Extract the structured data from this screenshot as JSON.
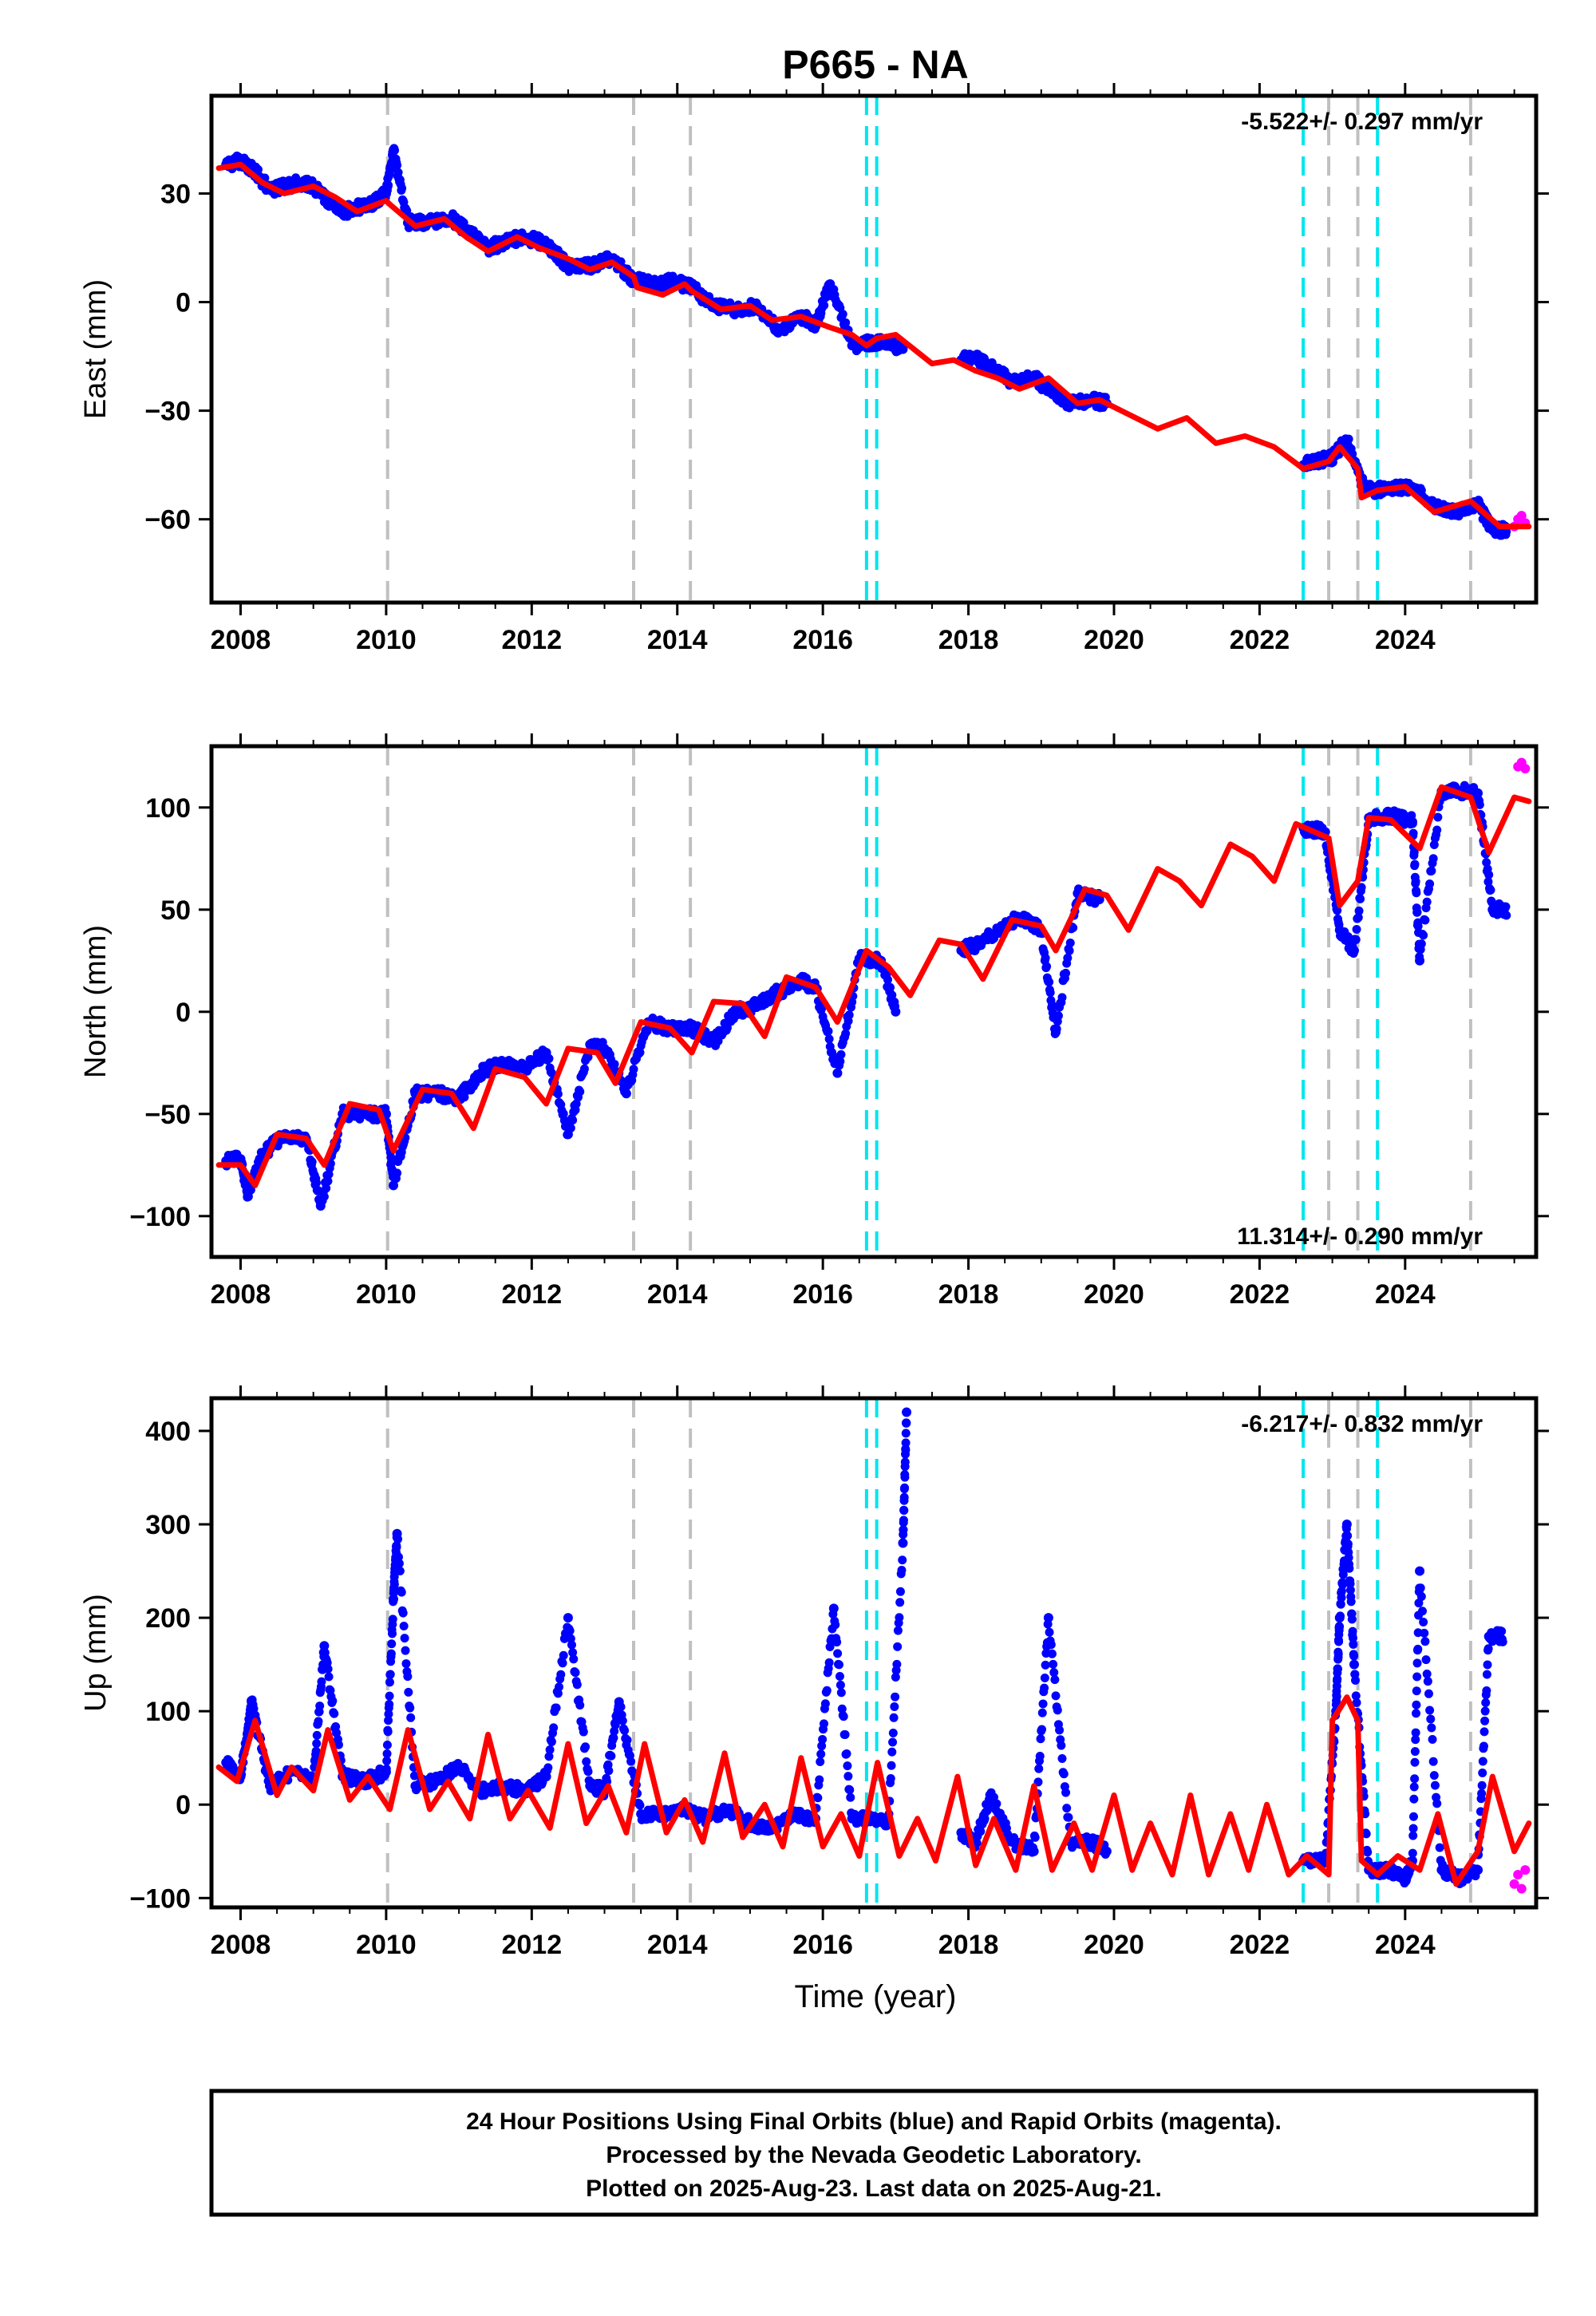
{
  "figure": {
    "title": "P665 - NA",
    "xlabel": "Time (year)",
    "caption_lines": [
      "24 Hour Positions Using Final Orbits (blue) and Rapid Orbits (magenta).",
      "Processed by the Nevada Geodetic Laboratory.",
      "Plotted on 2025-Aug-23. Last data on 2025-Aug-21."
    ]
  },
  "colors": {
    "final_orbits": "#0000ff",
    "rapid_orbits": "#ff00ff",
    "model_fit": "#ff0000",
    "event_gray": "#c0c0c0",
    "event_cyan": "#00e5ee"
  },
  "chart_data": [
    {
      "type": "scatter",
      "panel": "east",
      "ylabel": "East (mm)",
      "rate_text": "-5.522+/- 0.297 mm/yr",
      "rate_position": "top-right",
      "xlim": [
        2007.6,
        2025.8
      ],
      "ylim": [
        -83,
        57
      ],
      "x_ticks": [
        2008,
        2010,
        2012,
        2014,
        2016,
        2018,
        2020,
        2022,
        2024
      ],
      "y_ticks": [
        -60,
        -30,
        0,
        30
      ],
      "x_tick_labels": [
        "2008",
        "2010",
        "2012",
        "2014",
        "2016",
        "2018",
        "2020",
        "2022",
        "2024"
      ],
      "y_tick_labels": [
        "−60",
        "−30",
        "0",
        "30"
      ],
      "grid": false,
      "event_lines_gray": [
        2010.02,
        2013.4,
        2014.18,
        2022.95,
        2023.35,
        2024.9
      ],
      "event_lines_cyan": [
        2016.6,
        2016.74,
        2022.6,
        2023.62
      ],
      "series": [
        {
          "role": "final",
          "x": [
            2007.8,
            2008.0,
            2008.2,
            2008.4,
            2008.6,
            2008.8,
            2009.0,
            2009.2,
            2009.4,
            2009.6,
            2009.8,
            2010.0,
            2010.1,
            2010.3,
            2010.6,
            2010.9,
            2011.1,
            2011.4,
            2011.7,
            2011.9,
            2012.2,
            2012.5,
            2012.8,
            2013.1,
            2013.4,
            2013.7,
            2013.9,
            2014.2,
            2014.5,
            2014.8,
            2015.1,
            2015.4,
            2015.7,
            2015.9,
            2016.1,
            2016.4,
            2016.7,
            2016.9,
            2017.1,
            2017.9,
            2018.1,
            2018.3,
            2018.6,
            2018.9,
            2019.1,
            2019.4,
            2019.7,
            2019.9,
            2022.6,
            2022.8,
            2023.0,
            2023.2,
            2023.4,
            2023.6,
            2023.8,
            2024.1,
            2024.4,
            2024.7,
            2025.0,
            2025.2
          ],
          "y": [
            38,
            39,
            36,
            31,
            32,
            33,
            32,
            28,
            25,
            26,
            27,
            30,
            42,
            22,
            22,
            23,
            20,
            15,
            17,
            18,
            16,
            10,
            10,
            12,
            6,
            5,
            6,
            4,
            -1,
            -2,
            -1,
            -8,
            -4,
            -6,
            5,
            -12,
            -11,
            -11,
            -13,
            -16,
            -15,
            -18,
            -22,
            -21,
            -24,
            -28,
            -27,
            -28,
            -45,
            -44,
            -43,
            -38,
            -50,
            -52,
            -51,
            -51,
            -56,
            -58,
            -56,
            -63
          ]
        },
        {
          "role": "rapid",
          "x": [
            2025.5,
            2025.55,
            2025.6,
            2025.65
          ],
          "y": [
            -62,
            -60,
            -59,
            -61
          ]
        },
        {
          "role": "fit",
          "x": [
            2007.7,
            2008.0,
            2008.3,
            2008.6,
            2009.0,
            2009.3,
            2009.6,
            2010.0,
            2010.05,
            2010.4,
            2010.8,
            2011.1,
            2011.4,
            2011.8,
            2012.1,
            2012.5,
            2012.8,
            2013.1,
            2013.4,
            2013.45,
            2013.8,
            2014.1,
            2014.2,
            2014.6,
            2015.0,
            2015.3,
            2015.7,
            2016.1,
            2016.4,
            2016.6,
            2016.74,
            2017.0,
            2017.5,
            2017.8,
            2018.1,
            2018.4,
            2018.7,
            2019.1,
            2019.5,
            2019.8,
            2020.2,
            2020.6,
            2021.0,
            2021.4,
            2021.8,
            2022.2,
            2022.6,
            2022.95,
            2023.1,
            2023.35,
            2023.4,
            2023.62,
            2024.0,
            2024.4,
            2024.9,
            2025.3,
            2025.7
          ],
          "y": [
            37,
            38,
            33,
            30,
            32,
            29,
            25,
            28,
            27,
            21,
            23,
            18,
            14,
            18,
            15,
            12,
            9,
            11,
            7,
            4,
            2,
            5,
            3,
            -2,
            -1,
            -5,
            -4,
            -7,
            -9,
            -12,
            -10,
            -9,
            -17,
            -16,
            -19,
            -21,
            -24,
            -21,
            -28,
            -27,
            -31,
            -35,
            -32,
            -39,
            -37,
            -40,
            -46,
            -44,
            -40,
            -46,
            -54,
            -52,
            -51,
            -58,
            -55,
            -62,
            -62
          ]
        }
      ]
    },
    {
      "type": "scatter",
      "panel": "north",
      "ylabel": "North (mm)",
      "rate_text": "11.314+/- 0.290 mm/yr",
      "rate_position": "bottom-right",
      "xlim": [
        2007.6,
        2025.8
      ],
      "ylim": [
        -120,
        130
      ],
      "x_ticks": [
        2008,
        2010,
        2012,
        2014,
        2016,
        2018,
        2020,
        2022,
        2024
      ],
      "y_ticks": [
        -100,
        -50,
        0,
        50,
        100
      ],
      "x_tick_labels": [
        "2008",
        "2010",
        "2012",
        "2014",
        "2016",
        "2018",
        "2020",
        "2022",
        "2024"
      ],
      "y_tick_labels": [
        "−100",
        "−50",
        "0",
        "50",
        "100"
      ],
      "grid": false,
      "event_lines_gray": [
        2010.02,
        2013.4,
        2014.18,
        2022.95,
        2023.35,
        2024.9
      ],
      "event_lines_cyan": [
        2016.6,
        2016.74,
        2022.6,
        2023.62
      ],
      "series": [
        {
          "role": "final",
          "x": [
            2007.8,
            2008.0,
            2008.1,
            2008.3,
            2008.6,
            2008.9,
            2009.1,
            2009.4,
            2009.7,
            2010.0,
            2010.1,
            2010.4,
            2010.7,
            2011.0,
            2011.3,
            2011.6,
            2011.9,
            2012.2,
            2012.5,
            2012.8,
            2013.0,
            2013.3,
            2013.6,
            2013.9,
            2014.2,
            2014.5,
            2014.8,
            2015.1,
            2015.4,
            2015.7,
            2015.9,
            2016.2,
            2016.5,
            2016.8,
            2017.0,
            2017.9,
            2018.1,
            2018.4,
            2018.7,
            2019.0,
            2019.2,
            2019.5,
            2019.8,
            2022.6,
            2022.9,
            2023.1,
            2023.3,
            2023.5,
            2023.8,
            2024.1,
            2024.2,
            2024.5,
            2024.8,
            2025.0,
            2025.2
          ],
          "y": [
            -73,
            -72,
            -90,
            -70,
            -60,
            -62,
            -95,
            -50,
            -50,
            -50,
            -85,
            -40,
            -40,
            -42,
            -30,
            -25,
            -28,
            -20,
            -60,
            -16,
            -18,
            -40,
            -5,
            -8,
            -8,
            -15,
            0,
            3,
            10,
            15,
            12,
            -30,
            26,
            25,
            0,
            30,
            33,
            40,
            46,
            40,
            -10,
            58,
            55,
            90,
            88,
            40,
            30,
            95,
            96,
            93,
            25,
            108,
            108,
            107,
            50
          ]
        },
        {
          "role": "rapid",
          "x": [
            2025.55,
            2025.6,
            2025.65
          ],
          "y": [
            120,
            122,
            119
          ]
        },
        {
          "role": "fit",
          "x": [
            2007.7,
            2008.0,
            2008.2,
            2008.5,
            2008.9,
            2009.15,
            2009.5,
            2009.9,
            2010.1,
            2010.5,
            2010.9,
            2011.2,
            2011.5,
            2011.9,
            2012.2,
            2012.5,
            2012.9,
            2013.15,
            2013.5,
            2013.9,
            2014.2,
            2014.5,
            2014.9,
            2015.2,
            2015.5,
            2015.9,
            2016.2,
            2016.6,
            2016.9,
            2017.2,
            2017.6,
            2017.9,
            2018.2,
            2018.6,
            2019.0,
            2019.2,
            2019.6,
            2019.9,
            2020.2,
            2020.6,
            2020.9,
            2021.2,
            2021.6,
            2021.9,
            2022.2,
            2022.5,
            2022.95,
            2023.1,
            2023.35,
            2023.5,
            2023.8,
            2024.2,
            2024.5,
            2024.9,
            2025.15,
            2025.5,
            2025.7
          ],
          "y": [
            -75,
            -75,
            -85,
            -60,
            -62,
            -75,
            -45,
            -48,
            -68,
            -38,
            -40,
            -57,
            -28,
            -32,
            -45,
            -18,
            -20,
            -35,
            -5,
            -8,
            -20,
            5,
            4,
            -12,
            17,
            12,
            -5,
            30,
            22,
            8,
            35,
            33,
            16,
            45,
            42,
            30,
            60,
            57,
            40,
            70,
            64,
            52,
            82,
            76,
            64,
            92,
            85,
            52,
            64,
            95,
            94,
            80,
            110,
            105,
            78,
            105,
            103
          ]
        }
      ]
    },
    {
      "type": "scatter",
      "panel": "up",
      "ylabel": "Up (mm)",
      "rate_text": "-6.217+/- 0.832 mm/yr",
      "rate_position": "top-right",
      "xlim": [
        2007.6,
        2025.8
      ],
      "ylim": [
        -110,
        435
      ],
      "x_ticks": [
        2008,
        2010,
        2012,
        2014,
        2016,
        2018,
        2020,
        2022,
        2024
      ],
      "y_ticks": [
        -100,
        0,
        100,
        200,
        300,
        400
      ],
      "x_tick_labels": [
        "2008",
        "2010",
        "2012",
        "2014",
        "2016",
        "2018",
        "2020",
        "2022",
        "2024"
      ],
      "y_tick_labels": [
        "−100",
        "0",
        "100",
        "200",
        "300",
        "400"
      ],
      "grid": false,
      "event_lines_gray": [
        2010.02,
        2013.4,
        2014.18,
        2022.95,
        2023.35,
        2024.9
      ],
      "event_lines_cyan": [
        2016.6,
        2016.74,
        2022.6,
        2023.62
      ],
      "series": [
        {
          "role": "final",
          "x": [
            2007.8,
            2008.0,
            2008.15,
            2008.4,
            2008.7,
            2009.0,
            2009.15,
            2009.4,
            2009.7,
            2010.0,
            2010.1,
            2010.15,
            2010.4,
            2010.7,
            2011.0,
            2011.3,
            2011.6,
            2011.9,
            2012.2,
            2012.5,
            2012.8,
            2013.0,
            2013.2,
            2013.5,
            2013.8,
            2014.1,
            2014.4,
            2014.7,
            2015.0,
            2015.3,
            2015.6,
            2015.9,
            2016.15,
            2016.4,
            2016.7,
            2016.9,
            2017.1,
            2017.15,
            2017.9,
            2018.1,
            2018.3,
            2018.6,
            2018.9,
            2019.1,
            2019.4,
            2019.7,
            2019.9,
            2022.6,
            2022.9,
            2023.05,
            2023.1,
            2023.2,
            2023.3,
            2023.5,
            2023.8,
            2024.0,
            2024.1,
            2024.2,
            2024.5,
            2024.8,
            2025.0,
            2025.15
          ],
          "y": [
            45,
            30,
            110,
            20,
            35,
            25,
            170,
            30,
            25,
            35,
            220,
            290,
            20,
            25,
            40,
            15,
            20,
            15,
            30,
            200,
            20,
            15,
            110,
            -10,
            -10,
            -5,
            -15,
            -5,
            -20,
            -25,
            -10,
            -15,
            210,
            -15,
            -15,
            -20,
            280,
            420,
            -30,
            -40,
            10,
            -40,
            -50,
            200,
            -40,
            -40,
            -50,
            -60,
            -60,
            100,
            200,
            300,
            150,
            -70,
            -70,
            -80,
            -60,
            250,
            -70,
            -80,
            -70,
            180
          ]
        },
        {
          "role": "rapid",
          "x": [
            2025.5,
            2025.55,
            2025.6,
            2025.65
          ],
          "y": [
            -85,
            -75,
            -90,
            -70
          ]
        },
        {
          "role": "fit",
          "x": [
            2007.7,
            2007.95,
            2008.2,
            2008.5,
            2008.7,
            2009.0,
            2009.2,
            2009.5,
            2009.75,
            2010.05,
            2010.3,
            2010.6,
            2010.85,
            2011.15,
            2011.4,
            2011.7,
            2011.95,
            2012.25,
            2012.5,
            2012.75,
            2013.05,
            2013.3,
            2013.55,
            2013.85,
            2014.1,
            2014.35,
            2014.65,
            2014.9,
            2015.2,
            2015.45,
            2015.7,
            2016.0,
            2016.25,
            2016.5,
            2016.75,
            2017.05,
            2017.3,
            2017.55,
            2017.85,
            2018.1,
            2018.35,
            2018.65,
            2018.9,
            2019.15,
            2019.45,
            2019.7,
            2020.0,
            2020.25,
            2020.5,
            2020.8,
            2021.05,
            2021.3,
            2021.6,
            2021.85,
            2022.1,
            2022.4,
            2022.65,
            2022.95,
            2023.0,
            2023.2,
            2023.35,
            2023.4,
            2023.62,
            2023.9,
            2024.2,
            2024.45,
            2024.7,
            2025.0,
            2025.2,
            2025.5,
            2025.7
          ],
          "y": [
            40,
            25,
            90,
            10,
            40,
            15,
            80,
            5,
            30,
            -5,
            80,
            -5,
            25,
            -15,
            75,
            -15,
            15,
            -25,
            65,
            -20,
            20,
            -30,
            65,
            -30,
            5,
            -40,
            55,
            -35,
            0,
            -45,
            50,
            -45,
            -10,
            -55,
            45,
            -55,
            -15,
            -60,
            30,
            -65,
            -15,
            -70,
            20,
            -70,
            -20,
            -70,
            10,
            -70,
            -20,
            -75,
            10,
            -75,
            -10,
            -70,
            0,
            -75,
            -55,
            -75,
            90,
            115,
            90,
            -60,
            -75,
            -55,
            -70,
            -10,
            -85,
            -50,
            30,
            -50,
            -20
          ]
        }
      ]
    }
  ]
}
